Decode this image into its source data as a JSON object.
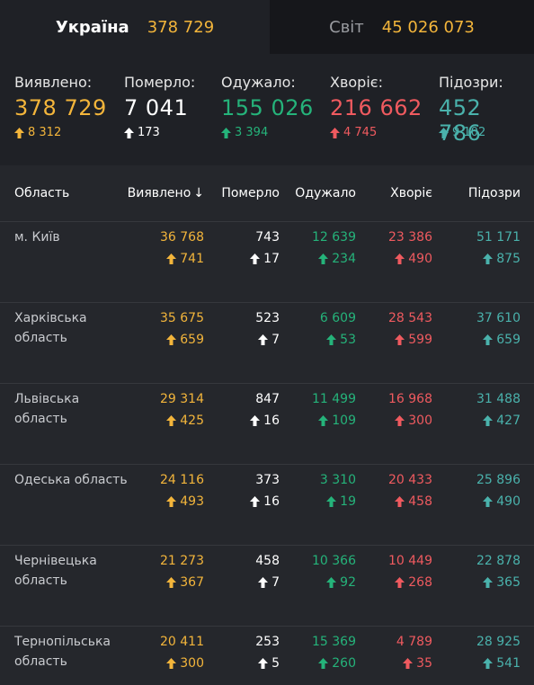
{
  "tabs": {
    "ukraine": {
      "label": "Україна",
      "value": "378 729"
    },
    "world": {
      "label": "Світ",
      "value": "45 026 073"
    }
  },
  "summary": [
    {
      "name": "Виявлено:",
      "value": "378 729",
      "delta": "8 312",
      "color": "#f3b53b"
    },
    {
      "name": "Померло:",
      "value": "7 041",
      "delta": "173",
      "color": "#ffffff"
    },
    {
      "name": "Одужало:",
      "value": "155 026",
      "delta": "3 394",
      "color": "#25b37a"
    },
    {
      "name": "Хворіє:",
      "value": "216 662",
      "delta": "4 745",
      "color": "#ef5a5f"
    },
    {
      "name": "Підозри:",
      "value": "452 786",
      "delta": "9 102",
      "color": "#4ab2ac"
    }
  ],
  "table": {
    "headers": {
      "region": "Область",
      "detected": "Виявлено",
      "dead": "Померло",
      "recovered": "Одужало",
      "sick": "Хворіє",
      "suspected": "Підозри"
    },
    "rows": [
      {
        "region": "м. Київ",
        "detected": "36 768",
        "detected_d": "741",
        "dead": "743",
        "dead_d": "17",
        "recovered": "12 639",
        "recovered_d": "234",
        "sick": "23 386",
        "sick_d": "490",
        "suspected": "51 171",
        "suspected_d": "875"
      },
      {
        "region": "Харківська область",
        "detected": "35 675",
        "detected_d": "659",
        "dead": "523",
        "dead_d": "7",
        "recovered": "6 609",
        "recovered_d": "53",
        "sick": "28 543",
        "sick_d": "599",
        "suspected": "37 610",
        "suspected_d": "659"
      },
      {
        "region": "Львівська область",
        "detected": "29 314",
        "detected_d": "425",
        "dead": "847",
        "dead_d": "16",
        "recovered": "11 499",
        "recovered_d": "109",
        "sick": "16 968",
        "sick_d": "300",
        "suspected": "31 488",
        "suspected_d": "427"
      },
      {
        "region": "Одеська область",
        "detected": "24 116",
        "detected_d": "493",
        "dead": "373",
        "dead_d": "16",
        "recovered": "3 310",
        "recovered_d": "19",
        "sick": "20 433",
        "sick_d": "458",
        "suspected": "25 896",
        "suspected_d": "490"
      },
      {
        "region": "Чернівецька область",
        "detected": "21 273",
        "detected_d": "367",
        "dead": "458",
        "dead_d": "7",
        "recovered": "10 366",
        "recovered_d": "92",
        "sick": "10 449",
        "sick_d": "268",
        "suspected": "22 878",
        "suspected_d": "365"
      },
      {
        "region": "Тернопільська область",
        "detected": "20 411",
        "detected_d": "300",
        "dead": "253",
        "dead_d": "5",
        "recovered": "15 369",
        "recovered_d": "260",
        "sick": "4 789",
        "sick_d": "35",
        "suspected": "28 925",
        "suspected_d": "541"
      }
    ]
  },
  "colors": {
    "detected": "#f3b53b",
    "dead": "#ffffff",
    "recovered": "#25b37a",
    "sick": "#ef5a5f",
    "suspected": "#4ab2ac"
  }
}
